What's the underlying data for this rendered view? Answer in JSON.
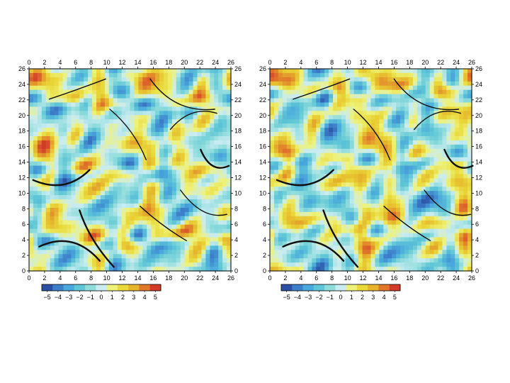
{
  "chart_data": [
    {
      "type": "heatmap",
      "title": "",
      "xlabel": "",
      "ylabel": "",
      "xlim": [
        0,
        26
      ],
      "ylim": [
        0,
        26
      ],
      "x_ticks": [
        "0",
        "2",
        "4",
        "6",
        "8",
        "10",
        "12",
        "14",
        "16",
        "18",
        "20",
        "22",
        "24",
        "26"
      ],
      "y_ticks": [
        "0",
        "2",
        "4",
        "6",
        "8",
        "10",
        "12",
        "14",
        "16",
        "18",
        "20",
        "22",
        "24",
        "26"
      ],
      "ticks_on_all_sides": true,
      "field_description_colors": "vorticity-like swirling field with thin dark filaments",
      "colorbar": {
        "range": [
          -5,
          5
        ],
        "labels": [
          "−5",
          "−4",
          "−3",
          "−2",
          "−1",
          "0",
          "1",
          "2",
          "3",
          "4",
          "5"
        ],
        "colors": [
          "#2b4fa3",
          "#3d7fc9",
          "#4aa8dc",
          "#5ec6d6",
          "#8fdcdc",
          "#c9ecf2",
          "#eef27a",
          "#e9d93a",
          "#e6b52c",
          "#e0772b",
          "#d23a2a"
        ]
      }
    },
    {
      "type": "heatmap",
      "title": "",
      "xlabel": "",
      "ylabel": "",
      "xlim": [
        0,
        26
      ],
      "ylim": [
        0,
        26
      ],
      "x_ticks": [
        "0",
        "2",
        "4",
        "6",
        "8",
        "10",
        "12",
        "14",
        "16",
        "18",
        "20",
        "22",
        "24",
        "26"
      ],
      "y_ticks": [
        "0",
        "2",
        "4",
        "6",
        "8",
        "10",
        "12",
        "14",
        "16",
        "18",
        "20",
        "22",
        "24",
        "26"
      ],
      "ticks_on_all_sides": true,
      "colorbar": {
        "range": [
          -5,
          5
        ],
        "labels": [
          "−5",
          "−4",
          "−3",
          "−2",
          "−1",
          "0",
          "1",
          "2",
          "3",
          "4",
          "5"
        ],
        "colors": [
          "#2b4fa3",
          "#3d7fc9",
          "#4aa8dc",
          "#5ec6d6",
          "#8fdcdc",
          "#c9ecf2",
          "#eef27a",
          "#e9d93a",
          "#e6b52c",
          "#e0772b",
          "#d23a2a"
        ]
      }
    }
  ]
}
